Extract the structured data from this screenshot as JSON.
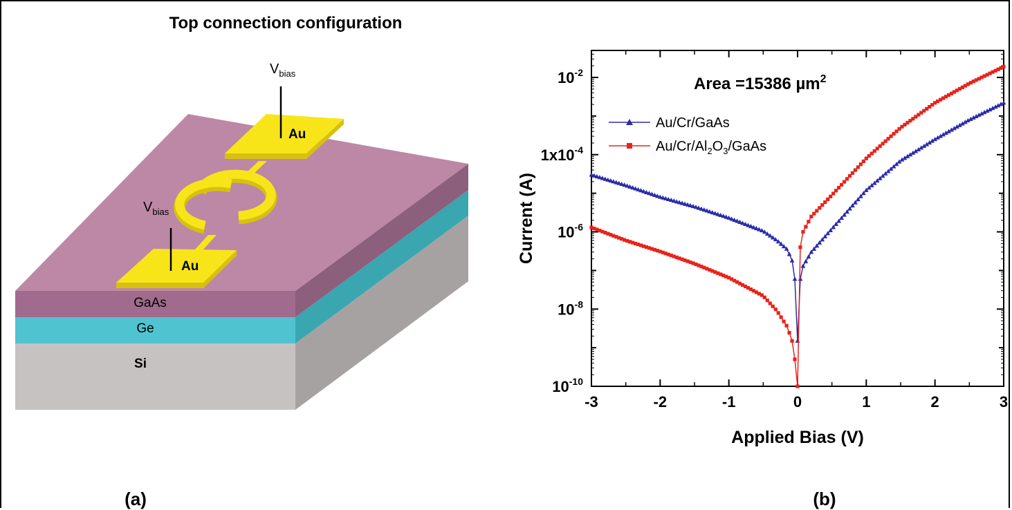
{
  "panel_a": {
    "title": "Top connection configuration",
    "caption": "(a)",
    "vbias_main": "V",
    "vbias_sub": "bias",
    "pad_label": "Au",
    "layers": [
      "GaAs",
      "Ge",
      "Si"
    ],
    "colors": {
      "gaas_top": "#bd87a6",
      "gaas_front": "#a06b8c",
      "gaas_side": "#8c5f7c",
      "ge_front": "#4fc3cf",
      "ge_side": "#3aa6b0",
      "si_front": "#c6c2c2",
      "si_side": "#a7a2a2",
      "gold": "#f7e51a",
      "gold_dark": "#d7c10e"
    }
  },
  "panel_b": {
    "caption": "(b)",
    "annotation_main": "Area =15386 µm",
    "annotation_sup": "2",
    "legend": [
      {
        "key": "s1",
        "parts": [
          [
            "Au/Cr/GaAs",
            ""
          ]
        ]
      },
      {
        "key": "s2",
        "parts": [
          [
            "Au/Cr/Al",
            ""
          ],
          [
            "2",
            "sub"
          ],
          [
            "O",
            ""
          ],
          [
            "3",
            "sub"
          ],
          [
            "/GaAs",
            ""
          ]
        ]
      }
    ]
  },
  "chart_data": {
    "type": "line",
    "xlabel": "Applied Bias (V)",
    "ylabel": "Current (A)",
    "xlim": [
      -3,
      3
    ],
    "ylim": [
      1e-10,
      0.05
    ],
    "yscale": "log",
    "x_ticks": [
      "-3",
      "-2",
      "-1",
      "0",
      "1",
      "2",
      "3"
    ],
    "y_ticks": [
      {
        "value": 1e-10,
        "base": "10",
        "exp": "-10"
      },
      {
        "value": 1e-08,
        "base": "10",
        "exp": "-8"
      },
      {
        "value": 1e-06,
        "base": "10",
        "exp": "-6"
      },
      {
        "value": 0.0001,
        "base": "1x10",
        "exp": "-4"
      },
      {
        "value": 0.01,
        "base": "10",
        "exp": "-2"
      }
    ],
    "legend_position": "top-left",
    "series": [
      {
        "name": "Au/Cr/GaAs",
        "color": "#2b2ba8",
        "marker": "triangle",
        "x": [
          -3,
          -2.5,
          -2,
          -1.5,
          -1,
          -0.5,
          -0.3,
          -0.15,
          -0.08,
          -0.04,
          0,
          0.04,
          0.08,
          0.2,
          0.5,
          1,
          1.5,
          2,
          2.5,
          3
        ],
        "y": [
          3e-05,
          1.6e-05,
          8e-06,
          4.5e-06,
          2.3e-06,
          1.05e-06,
          6e-07,
          3.5e-07,
          1.8e-07,
          6e-08,
          1.5e-09,
          6e-08,
          1.3e-07,
          3e-07,
          1.2e-06,
          1.2e-05,
          7e-05,
          0.00025,
          0.0008,
          0.0022
        ]
      },
      {
        "name": "Au/Cr/Al2O3/GaAs",
        "color": "#e8231b",
        "marker": "square",
        "x": [
          -3,
          -2.5,
          -2,
          -1.5,
          -1,
          -0.5,
          -0.3,
          -0.15,
          -0.08,
          -0.04,
          0,
          0.04,
          0.08,
          0.2,
          0.5,
          1,
          1.5,
          2,
          2.5,
          3
        ],
        "y": [
          1.3e-06,
          6e-07,
          3.1e-07,
          1.5e-07,
          6.5e-08,
          2.2e-08,
          9e-09,
          3.5e-09,
          1.5e-09,
          5e-10,
          1e-10,
          4e-07,
          1e-06,
          2.5e-06,
          9e-06,
          8e-05,
          0.0005,
          0.0022,
          0.007,
          0.019
        ]
      }
    ]
  }
}
